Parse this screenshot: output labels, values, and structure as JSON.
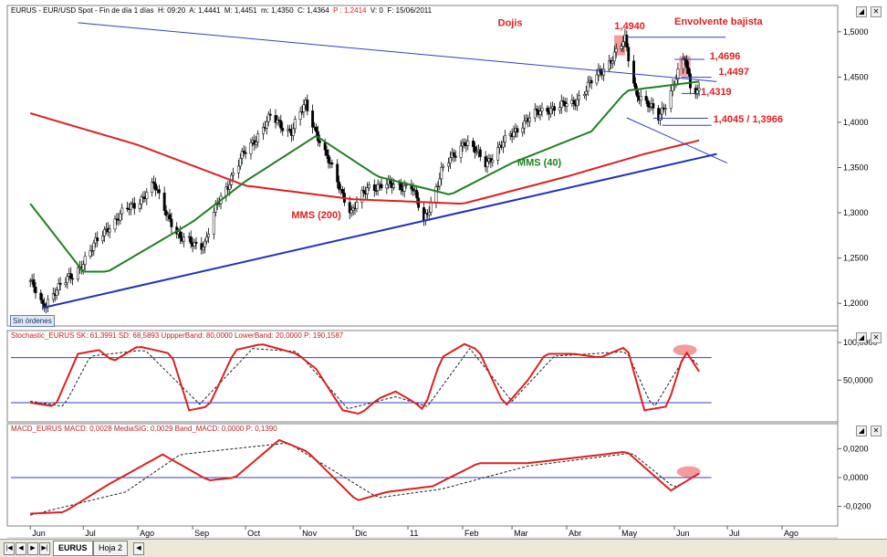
{
  "chart_data": [
    {
      "type": "candlestick",
      "title": "EURUS - EUR/USD Spot - Fin de día 1 días  H: 09:20  A: 1,4441  M: 1,4451  m: 1,4350  C: 1,4364",
      "header": {
        "symbol": "EURUS - EUR/USD Spot - Fin de día 1 días",
        "time": "H: 09:20",
        "open": "A: 1,4441",
        "high": "M: 1,4451",
        "low": "m: 1,4350",
        "close": "C: 1,4364",
        "pct": "P : 1,2414",
        "volume": "V: 0",
        "date": "F: 15/06/2011"
      },
      "x_labels": [
        "Jun",
        "Jul",
        "Ago",
        "Sep",
        "Oct",
        "Nov",
        "Dic",
        "11",
        "Feb",
        "Mar",
        "Abr",
        "May",
        "Jun",
        "Jul",
        "Ago"
      ],
      "ylim": [
        1.18,
        1.52
      ],
      "yticks": [
        "1,5000",
        "1,4500",
        "1,4000",
        "1,3500",
        "1,3000",
        "1,2500",
        "1,2000"
      ],
      "price_keypoints": [
        [
          "2010-06-01",
          1.225
        ],
        [
          "2010-06-08",
          1.195
        ],
        [
          "2010-06-15",
          1.215
        ],
        [
          "2010-06-25",
          1.23
        ],
        [
          "2010-07-15",
          1.285
        ],
        [
          "2010-08-05",
          1.32
        ],
        [
          "2010-08-10",
          1.33
        ],
        [
          "2010-08-25",
          1.27
        ],
        [
          "2010-09-08",
          1.265
        ],
        [
          "2010-09-15",
          1.31
        ],
        [
          "2010-09-30",
          1.365
        ],
        [
          "2010-10-15",
          1.405
        ],
        [
          "2010-10-27",
          1.39
        ],
        [
          "2010-11-04",
          1.42
        ],
        [
          "2010-11-15",
          1.365
        ],
        [
          "2010-11-30",
          1.3
        ],
        [
          "2010-12-10",
          1.33
        ],
        [
          "2011-01-03",
          1.33
        ],
        [
          "2011-01-10",
          1.29
        ],
        [
          "2011-01-20",
          1.345
        ],
        [
          "2011-02-02",
          1.38
        ],
        [
          "2011-02-14",
          1.355
        ],
        [
          "2011-03-07",
          1.4
        ],
        [
          "2011-03-20",
          1.415
        ],
        [
          "2011-04-04",
          1.42
        ],
        [
          "2011-04-20",
          1.455
        ],
        [
          "2011-05-04",
          1.49
        ],
        [
          "2011-05-10",
          1.435
        ],
        [
          "2011-05-23",
          1.405
        ],
        [
          "2011-06-07",
          1.47
        ],
        [
          "2011-06-10",
          1.44
        ],
        [
          "2011-06-15",
          1.4364
        ]
      ],
      "series": [
        {
          "name": "MMS (200)",
          "color": "#dd2020",
          "points": [
            [
              "2010-06-01",
              1.41
            ],
            [
              "2010-08-01",
              1.375
            ],
            [
              "2010-10-01",
              1.33
            ],
            [
              "2010-12-01",
              1.315
            ],
            [
              "2011-02-01",
              1.31
            ],
            [
              "2011-04-01",
              1.34
            ],
            [
              "2011-05-15",
              1.365
            ],
            [
              "2011-06-15",
              1.38
            ]
          ]
        },
        {
          "name": "MMS (40)",
          "color": "#208020",
          "points": [
            [
              "2010-06-01",
              1.31
            ],
            [
              "2010-07-01",
              1.235
            ],
            [
              "2010-07-15",
              1.235
            ],
            [
              "2010-09-01",
              1.29
            ],
            [
              "2010-10-01",
              1.335
            ],
            [
              "2010-11-10",
              1.385
            ],
            [
              "2010-12-15",
              1.34
            ],
            [
              "2011-01-25",
              1.32
            ],
            [
              "2011-03-01",
              1.355
            ],
            [
              "2011-04-15",
              1.39
            ],
            [
              "2011-05-05",
              1.435
            ],
            [
              "2011-06-15",
              1.445
            ]
          ]
        }
      ],
      "trendlines": [
        {
          "color": "#2030c0",
          "width": 2,
          "from": [
            "2010-06-08",
            1.195
          ],
          "to": [
            "2011-06-25",
            1.365
          ]
        },
        {
          "color": "#3040c0",
          "width": 1,
          "from": [
            "2010-06-28",
            1.51
          ],
          "to": [
            "2011-06-25",
            1.445
          ]
        },
        {
          "color": "#3040c0",
          "width": 1,
          "from": [
            "2011-05-05",
            1.405
          ],
          "to": [
            "2011-07-01",
            1.355
          ]
        }
      ],
      "levels": [
        {
          "value": 1.494,
          "from": "2011-05-05",
          "to": "2011-06-30"
        },
        {
          "value": 1.4696,
          "from": "2011-06-01",
          "to": "2011-06-18"
        },
        {
          "value": 1.4497,
          "from": "2011-06-05",
          "to": "2011-06-22"
        },
        {
          "value": 1.4319,
          "from": "2011-06-05",
          "to": "2011-06-15"
        },
        {
          "value": 1.4045,
          "from": "2011-05-20",
          "to": "2011-06-20"
        },
        {
          "value": 1.3966,
          "from": "2011-05-25",
          "to": "2011-06-22"
        }
      ],
      "annotations": [
        {
          "text": "Dojis",
          "date": "2011-02-21",
          "value": 1.5065
        },
        {
          "text": "1,4940",
          "date": "2011-04-28",
          "value": 1.503
        },
        {
          "text": "Envolvente bajista",
          "date": "2011-06-01",
          "value": 1.508
        },
        {
          "text": "1,4696",
          "date": "2011-06-21",
          "value": 1.4695
        },
        {
          "text": "1,4497",
          "date": "2011-06-26",
          "value": 1.4525
        },
        {
          "text": "1,4319",
          "date": "2011-06-16",
          "value": 1.43
        },
        {
          "text": "1,4045 / 1,3966",
          "date": "2011-06-23",
          "value": 1.4
        },
        {
          "text": "MMS (40)",
          "date": "2011-03-04",
          "value": 1.352,
          "color": "#208020"
        },
        {
          "text": "MMS (200)",
          "date": "2010-10-27",
          "value": 1.294,
          "color": "#dd2020"
        }
      ],
      "highlights": [
        {
          "date": "2011-05-01",
          "value": 1.485
        },
        {
          "date": "2011-06-07",
          "value": 1.462
        }
      ],
      "badge": "Sin órdenes"
    },
    {
      "type": "line",
      "title": "Stochastic_EURUS  SK: 61,3991  SD: 68,5893  UppperBand: 80,0000  LowerBand: 20,0000  P: 190,1587",
      "ylim": [
        -3,
        105
      ],
      "yticks": [
        "100,0000",
        "50,0000"
      ],
      "bands": [
        80,
        20
      ],
      "series": [
        {
          "name": "SK",
          "color": "#dd2020",
          "points": [
            [
              "2010-06-01",
              20
            ],
            [
              "2010-06-15",
              15
            ],
            [
              "2010-06-28",
              85
            ],
            [
              "2010-07-10",
              90
            ],
            [
              "2010-07-18",
              75
            ],
            [
              "2010-08-01",
              95
            ],
            [
              "2010-08-20",
              85
            ],
            [
              "2010-08-30",
              10
            ],
            [
              "2010-09-10",
              15
            ],
            [
              "2010-09-25",
              90
            ],
            [
              "2010-10-10",
              98
            ],
            [
              "2010-10-30",
              85
            ],
            [
              "2010-11-10",
              65
            ],
            [
              "2010-11-25",
              10
            ],
            [
              "2010-12-05",
              5
            ],
            [
              "2010-12-15",
              25
            ],
            [
              "2010-12-25",
              35
            ],
            [
              "2011-01-05",
              20
            ],
            [
              "2011-01-10",
              10
            ],
            [
              "2011-01-20",
              80
            ],
            [
              "2011-02-02",
              98
            ],
            [
              "2011-02-10",
              90
            ],
            [
              "2011-02-25",
              15
            ],
            [
              "2011-03-10",
              50
            ],
            [
              "2011-03-20",
              85
            ],
            [
              "2011-04-05",
              85
            ],
            [
              "2011-04-20",
              80
            ],
            [
              "2011-05-05",
              95
            ],
            [
              "2011-05-15",
              10
            ],
            [
              "2011-05-28",
              15
            ],
            [
              "2011-06-07",
              90
            ],
            [
              "2011-06-15",
              61.4
            ]
          ]
        },
        {
          "name": "SD",
          "color": "#202020",
          "points": [
            [
              "2010-06-01",
              22
            ],
            [
              "2010-06-20",
              15
            ],
            [
              "2010-07-05",
              82
            ],
            [
              "2010-08-05",
              90
            ],
            [
              "2010-09-05",
              18
            ],
            [
              "2010-10-05",
              92
            ],
            [
              "2010-10-30",
              88
            ],
            [
              "2010-11-28",
              12
            ],
            [
              "2010-12-25",
              28
            ],
            [
              "2011-01-12",
              15
            ],
            [
              "2011-02-05",
              92
            ],
            [
              "2011-03-01",
              22
            ],
            [
              "2011-03-25",
              82
            ],
            [
              "2011-05-05",
              88
            ],
            [
              "2011-05-20",
              12
            ],
            [
              "2011-06-08",
              85
            ],
            [
              "2011-06-15",
              68.6
            ]
          ]
        }
      ],
      "highlight": {
        "date": "2011-06-07",
        "value": 90
      }
    },
    {
      "type": "line",
      "title": "MACD_EURUS  MACD: 0,0028  MediaSIG: 0,0029  Band_MACD: 0,0000  P: 0,1390",
      "ylim": [
        -0.031,
        0.031
      ],
      "yticks": [
        "0,0200",
        "0,0000",
        "-0,0200"
      ],
      "zero_line": 0,
      "series": [
        {
          "name": "MACD",
          "color": "#dd2020",
          "points": [
            [
              "2010-06-01",
              -0.025
            ],
            [
              "2010-06-20",
              -0.024
            ],
            [
              "2010-07-15",
              -0.005
            ],
            [
              "2010-08-15",
              0.016
            ],
            [
              "2010-09-10",
              -0.002
            ],
            [
              "2010-09-25",
              0.0
            ],
            [
              "2010-10-20",
              0.026
            ],
            [
              "2010-11-05",
              0.018
            ],
            [
              "2010-12-03",
              -0.016
            ],
            [
              "2010-12-20",
              -0.01
            ],
            [
              "2011-01-15",
              -0.006
            ],
            [
              "2011-02-10",
              0.01
            ],
            [
              "2011-03-10",
              0.01
            ],
            [
              "2011-04-15",
              0.015
            ],
            [
              "2011-05-05",
              0.018
            ],
            [
              "2011-05-30",
              -0.009
            ],
            [
              "2011-06-15",
              0.0028
            ]
          ]
        },
        {
          "name": "MediaSIG",
          "color": "#202020",
          "points": [
            [
              "2010-06-01",
              -0.026
            ],
            [
              "2010-07-25",
              -0.01
            ],
            [
              "2010-08-25",
              0.016
            ],
            [
              "2010-10-25",
              0.024
            ],
            [
              "2010-12-15",
              -0.014
            ],
            [
              "2011-01-20",
              -0.008
            ],
            [
              "2011-03-10",
              0.008
            ],
            [
              "2011-05-08",
              0.017
            ],
            [
              "2011-06-01",
              -0.007
            ],
            [
              "2011-06-15",
              0.0029
            ]
          ]
        }
      ],
      "highlight": {
        "date": "2011-06-07",
        "value": 0.004
      }
    }
  ],
  "ui": {
    "nav_first": "|◀",
    "nav_prev": "◀",
    "nav_next": "▶",
    "nav_last": "▶|",
    "tab_active": "EURUS",
    "tab_other": "Hoja 2",
    "winbtn_pin": "◢",
    "winbtn_close": "✕"
  }
}
